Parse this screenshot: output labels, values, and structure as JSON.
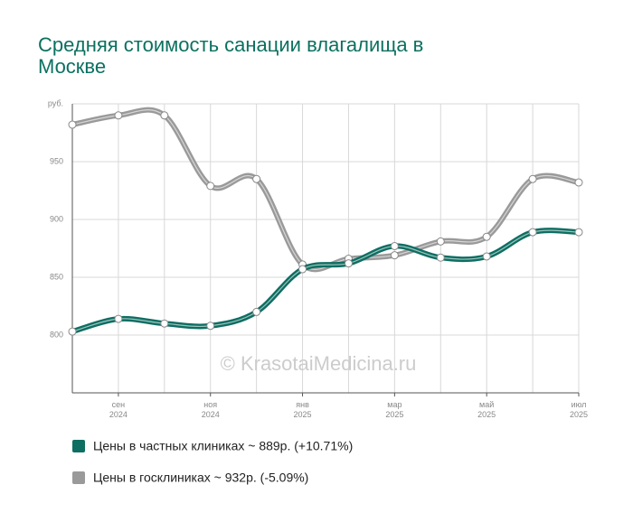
{
  "chart_data": {
    "type": "line",
    "title": "Средняя стоимость санации влагалища в Москве",
    "annotation": "© KrasotaiMedicina.ru",
    "categories": [
      null,
      "сен 2024",
      null,
      "ноя 2024",
      null,
      "янв 2025",
      null,
      "мар 2025",
      null,
      "май 2025",
      null,
      "июл 2025"
    ],
    "series": [
      {
        "name": "Цены в частных клиниках ~ 889р. (+10.71%)",
        "color": "#0e6e62",
        "values": [
          803,
          814,
          810,
          808,
          820,
          857,
          862,
          877,
          867,
          868,
          889,
          889
        ]
      },
      {
        "name": "Цены в госклиниках ~ 932р. (-5.09%)",
        "color": "#9a9a9a",
        "values": [
          982,
          990,
          990,
          929,
          935,
          861,
          866,
          869,
          881,
          885,
          935,
          932
        ]
      }
    ],
    "ylim": [
      750,
      1000
    ],
    "yticks": [
      800,
      850,
      900,
      950,
      {
        "value": 1000,
        "label": "руб."
      }
    ],
    "grid": true
  }
}
